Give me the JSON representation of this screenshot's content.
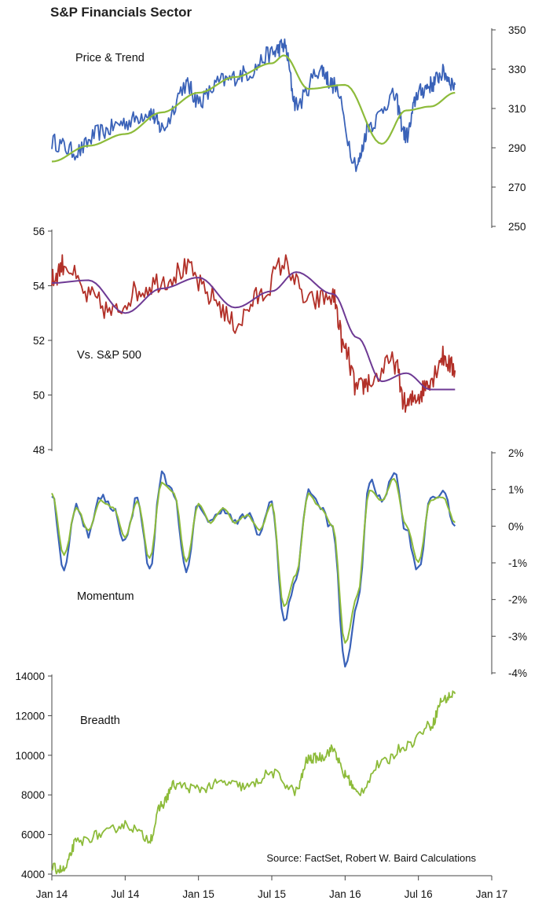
{
  "title": "S&P Financials Sector",
  "source": "Source: FactSet, Robert W. Baird Calculations",
  "colors": {
    "price": "#3a62b8",
    "trend": "#8dbb3a",
    "relative": "#b23028",
    "relative_avg": "#6e3a94",
    "momentum_fast": "#3a62b8",
    "momentum_slow": "#8dbb3a",
    "breadth": "#8dbb3a"
  },
  "chart_data": [
    {
      "type": "line",
      "panel_label": "Price & Trend",
      "axis_side": "right",
      "ylim": [
        250,
        350
      ],
      "y_ticks": [
        "350",
        "330",
        "310",
        "290",
        "270",
        "250"
      ],
      "series": [
        {
          "name": "Price",
          "x": [
            "2014-01",
            "2014-03",
            "2014-05",
            "2014-07",
            "2014-09",
            "2014-10",
            "2014-12",
            "2015-01",
            "2015-03",
            "2015-05",
            "2015-07",
            "2015-08",
            "2015-09",
            "2015-11",
            "2015-12",
            "2016-02",
            "2016-03",
            "2016-05",
            "2016-06",
            "2016-07",
            "2016-08",
            "2016-09",
            "2016-10"
          ],
          "values": [
            293,
            288,
            298,
            303,
            308,
            300,
            322,
            314,
            324,
            328,
            338,
            342,
            312,
            330,
            322,
            282,
            302,
            316,
            296,
            318,
            322,
            328,
            322
          ]
        },
        {
          "name": "Trend",
          "x": [
            "2014-01",
            "2014-04",
            "2014-07",
            "2014-10",
            "2015-01",
            "2015-04",
            "2015-07",
            "2015-08",
            "2015-10",
            "2016-01",
            "2016-04",
            "2016-06",
            "2016-08",
            "2016-10"
          ],
          "values": [
            283,
            291,
            297,
            308,
            318,
            326,
            333,
            337,
            320,
            322,
            292,
            309,
            311,
            318
          ]
        }
      ]
    },
    {
      "type": "line",
      "panel_label": "Vs. S&P 500",
      "axis_side": "left",
      "ylim": [
        48,
        56
      ],
      "y_ticks": [
        "56",
        "54",
        "52",
        "50",
        "48"
      ],
      "series": [
        {
          "name": "Relative",
          "x": [
            "2014-01",
            "2014-02",
            "2014-04",
            "2014-06",
            "2014-08",
            "2014-10",
            "2014-12",
            "2015-02",
            "2015-04",
            "2015-06",
            "2015-08",
            "2015-10",
            "2015-12",
            "2016-01",
            "2016-02",
            "2016-03",
            "2016-05",
            "2016-06",
            "2016-07",
            "2016-08",
            "2016-09",
            "2016-10"
          ],
          "values": [
            54.2,
            54.8,
            53.6,
            53.0,
            53.8,
            54.2,
            54.6,
            53.6,
            52.6,
            53.6,
            54.8,
            53.4,
            53.6,
            51.6,
            50.2,
            50.5,
            51.2,
            49.6,
            50.0,
            50.6,
            51.4,
            50.9
          ]
        },
        {
          "name": "Average",
          "x": [
            "2014-01",
            "2014-04",
            "2014-07",
            "2014-10",
            "2015-01",
            "2015-04",
            "2015-07",
            "2015-09",
            "2015-12",
            "2016-02",
            "2016-04",
            "2016-06",
            "2016-08",
            "2016-10"
          ],
          "values": [
            54.1,
            54.2,
            53.0,
            53.9,
            54.3,
            53.2,
            53.8,
            54.5,
            53.7,
            52.1,
            50.5,
            50.8,
            50.2,
            50.2
          ]
        }
      ]
    },
    {
      "type": "line",
      "panel_label": "Momentum",
      "axis_side": "right",
      "ylim": [
        -4,
        2
      ],
      "y_ticks": [
        "2%",
        "1%",
        "0%",
        "-1%",
        "-2%",
        "-3%",
        "-4%"
      ],
      "series": [
        {
          "name": "Momentum fast",
          "x": [
            "2014-01",
            "2014-02",
            "2014-03",
            "2014-04",
            "2014-05",
            "2014-06",
            "2014-07",
            "2014-08",
            "2014-09",
            "2014-10",
            "2014-11",
            "2014-12",
            "2015-01",
            "2015-02",
            "2015-03",
            "2015-04",
            "2015-05",
            "2015-06",
            "2015-07",
            "2015-08",
            "2015-09",
            "2015-10",
            "2015-11",
            "2015-12",
            "2016-01",
            "2016-02",
            "2016-03",
            "2016-04",
            "2016-05",
            "2016-06",
            "2016-07",
            "2016-08",
            "2016-09",
            "2016-10"
          ],
          "values": [
            0.9,
            -1.2,
            0.6,
            -0.2,
            0.8,
            0.5,
            -0.4,
            0.8,
            -1.2,
            1.4,
            0.9,
            -1.3,
            0.6,
            0.1,
            0.5,
            0.1,
            0.3,
            -0.2,
            0.7,
            -2.6,
            -1.4,
            1.0,
            0.5,
            -0.1,
            -3.8,
            -2.2,
            1.2,
            0.7,
            1.5,
            -0.1,
            -1.2,
            0.8,
            0.9,
            0.0
          ]
        },
        {
          "name": "Momentum slow",
          "x": [
            "2014-01",
            "2014-02",
            "2014-03",
            "2014-04",
            "2014-05",
            "2014-06",
            "2014-07",
            "2014-08",
            "2014-09",
            "2014-10",
            "2014-11",
            "2014-12",
            "2015-01",
            "2015-02",
            "2015-03",
            "2015-04",
            "2015-05",
            "2015-06",
            "2015-07",
            "2015-08",
            "2015-09",
            "2015-10",
            "2015-11",
            "2015-12",
            "2016-01",
            "2016-02",
            "2016-03",
            "2016-04",
            "2016-05",
            "2016-06",
            "2016-07",
            "2016-08",
            "2016-09",
            "2016-10"
          ],
          "values": [
            0.9,
            -0.8,
            0.5,
            -0.1,
            0.7,
            0.5,
            -0.3,
            0.7,
            -0.9,
            1.2,
            0.9,
            -1.0,
            0.6,
            0.1,
            0.5,
            0.1,
            0.3,
            -0.1,
            0.6,
            -2.2,
            -1.3,
            0.9,
            0.5,
            0.0,
            -3.2,
            -1.9,
            1.0,
            0.7,
            1.3,
            0.0,
            -1.0,
            0.7,
            0.8,
            0.1
          ]
        }
      ]
    },
    {
      "type": "line",
      "panel_label": "Breadth",
      "axis_side": "left",
      "ylim": [
        4000,
        14000
      ],
      "y_ticks": [
        "14000",
        "12000",
        "10000",
        "8000",
        "6000",
        "4000"
      ],
      "series": [
        {
          "name": "Breadth",
          "x": [
            "2014-01",
            "2014-02",
            "2014-03",
            "2014-05",
            "2014-07",
            "2014-09",
            "2014-10",
            "2014-11",
            "2015-01",
            "2015-03",
            "2015-05",
            "2015-07",
            "2015-09",
            "2015-10",
            "2015-11",
            "2015-12",
            "2016-01",
            "2016-02",
            "2016-04",
            "2016-06",
            "2016-08",
            "2016-09",
            "2016-10"
          ],
          "values": [
            4300,
            4200,
            5600,
            6000,
            6500,
            5800,
            7500,
            8500,
            8300,
            8600,
            8400,
            9100,
            8200,
            9800,
            9900,
            10300,
            9000,
            8100,
            9600,
            10500,
            11500,
            12800,
            13100
          ]
        }
      ]
    }
  ],
  "x_axis": {
    "ticks": [
      "Jan 14",
      "Jul 14",
      "Jan 15",
      "Jul 15",
      "Jan 16",
      "Jul 16",
      "Jan 17"
    ]
  }
}
